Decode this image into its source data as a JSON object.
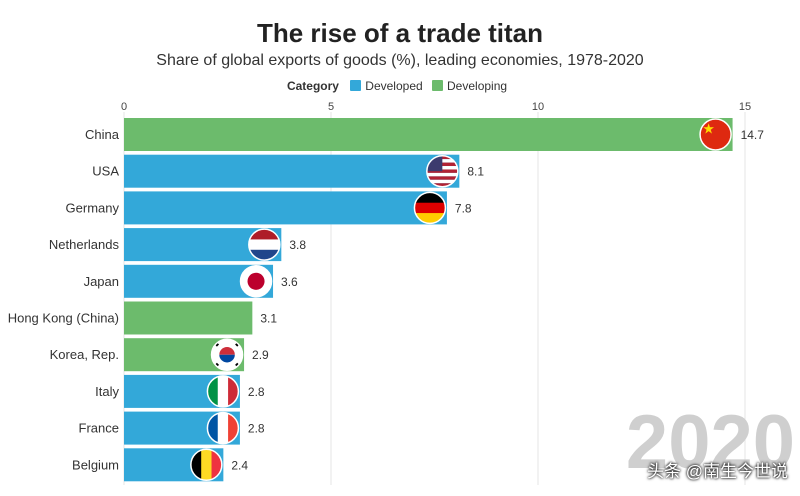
{
  "chart_data": {
    "type": "bar",
    "orientation": "horizontal",
    "title": "The rise of a trade titan",
    "subtitle": "Share of global exports of goods (%), leading economies, 1978-2020",
    "legend": {
      "title": "Category",
      "placement": "top-center",
      "items": [
        {
          "label": "Developed",
          "color": "#33a8d9"
        },
        {
          "label": "Developing",
          "color": "#6cbb6c"
        }
      ]
    },
    "xlim": [
      0,
      15
    ],
    "xticks": [
      0,
      5,
      10,
      15
    ],
    "grid": true,
    "year": "2020",
    "bars": [
      {
        "label": "China",
        "value": 14.7,
        "value_label": "14.7",
        "category": "Developing",
        "flag": "china-flag"
      },
      {
        "label": "USA",
        "value": 8.1,
        "value_label": "8.1",
        "category": "Developed",
        "flag": "usa-flag"
      },
      {
        "label": "Germany",
        "value": 7.8,
        "value_label": "7.8",
        "category": "Developed",
        "flag": "germany-flag"
      },
      {
        "label": "Netherlands",
        "value": 3.8,
        "value_label": "3.8",
        "category": "Developed",
        "flag": "netherlands-flag"
      },
      {
        "label": "Japan",
        "value": 3.6,
        "value_label": "3.6",
        "category": "Developed",
        "flag": "japan-flag"
      },
      {
        "label": "Hong Kong (China)",
        "value": 3.1,
        "value_label": "3.1",
        "category": "Developing",
        "flag": ""
      },
      {
        "label": "Korea, Rep.",
        "value": 2.9,
        "value_label": "2.9",
        "category": "Developing",
        "flag": "korea-flag"
      },
      {
        "label": "Italy",
        "value": 2.8,
        "value_label": "2.8",
        "category": "Developed",
        "flag": "italy-flag"
      },
      {
        "label": "France",
        "value": 2.8,
        "value_label": "2.8",
        "category": "Developed",
        "flag": "france-flag"
      },
      {
        "label": "Belgium",
        "value": 2.4,
        "value_label": "2.4",
        "category": "Developed",
        "flag": "belgium-flag"
      }
    ]
  },
  "watermark": "头条 @南生今世说"
}
